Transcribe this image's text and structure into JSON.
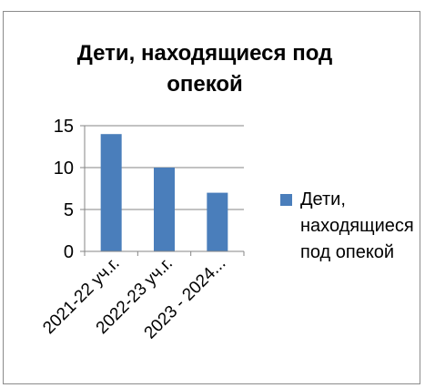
{
  "chart_data": {
    "type": "bar",
    "title": "Дети, находящиеся под опекой",
    "categories": [
      "2021-22 уч.г.",
      "2022-23 уч.г.",
      "2023 - 2024..."
    ],
    "series": [
      {
        "name": "Дети, находящиеся под опекой",
        "values": [
          14,
          10,
          7
        ]
      }
    ],
    "ylim": [
      0,
      15
    ],
    "yticks": [
      0,
      5,
      10,
      15
    ],
    "xlabel": "",
    "ylabel": "",
    "grid": true,
    "legend": "right",
    "colors": {
      "bar": "#4a7ebb",
      "grid": "#868686",
      "axis": "#868686"
    }
  }
}
